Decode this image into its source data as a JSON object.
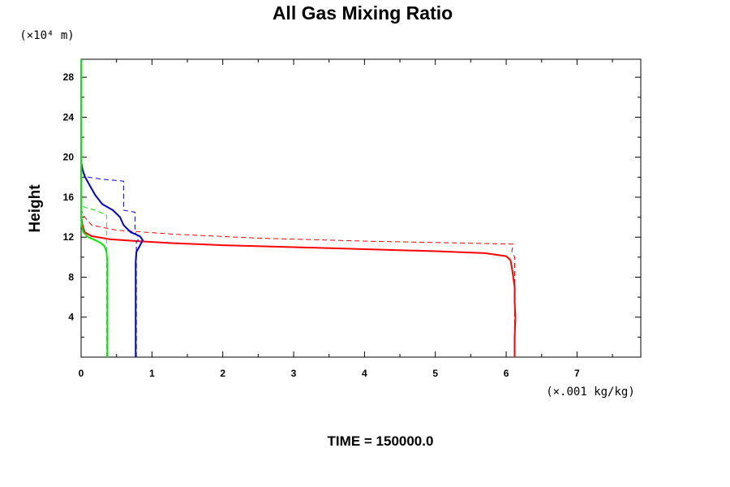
{
  "chart_data": {
    "type": "line",
    "title": "All Gas Mixing Ratio",
    "ylabel": "Height",
    "y_unit_label": "(×10⁴ m)",
    "x_unit_label": "(×.001 kg/kg)",
    "footer": "TIME = 150000.0",
    "xlim": [
      0,
      7.9
    ],
    "ylim": [
      0,
      29.8
    ],
    "x_ticks": [
      "0",
      "1",
      "2",
      "3",
      "4",
      "5",
      "6",
      "7"
    ],
    "y_ticks": [
      "4",
      "8",
      "12",
      "16",
      "20",
      "24",
      "28"
    ],
    "series": [
      {
        "color": "#ff0000",
        "style": "solid",
        "width": 2,
        "points": [
          [
            6.12,
            0
          ],
          [
            6.12,
            2
          ],
          [
            6.13,
            4
          ],
          [
            6.12,
            5.5
          ],
          [
            6.12,
            7
          ],
          [
            6.1,
            8
          ],
          [
            6.08,
            9
          ],
          [
            6.06,
            9.7
          ],
          [
            6.0,
            10.1
          ],
          [
            5.7,
            10.4
          ],
          [
            5.0,
            10.6
          ],
          [
            4.0,
            10.8
          ],
          [
            3.0,
            11.0
          ],
          [
            2.0,
            11.2
          ],
          [
            1.3,
            11.4
          ],
          [
            0.8,
            11.6
          ],
          [
            0.4,
            11.8
          ],
          [
            0.15,
            12.1
          ],
          [
            0.05,
            12.5
          ],
          [
            0.02,
            13.2
          ],
          [
            0,
            14
          ]
        ]
      },
      {
        "color": "#ff0000",
        "style": "dashed",
        "width": 1,
        "points": [
          [
            6.12,
            0
          ],
          [
            6.12,
            10
          ],
          [
            6.08,
            10.6
          ],
          [
            6.1,
            11.3
          ],
          [
            5.5,
            11.4
          ],
          [
            4.0,
            11.6
          ],
          [
            2.5,
            11.9
          ],
          [
            1.3,
            12.3
          ],
          [
            0.5,
            12.7
          ],
          [
            0.15,
            13.2
          ],
          [
            0.05,
            14
          ],
          [
            0,
            14.7
          ]
        ]
      },
      {
        "color": "#0000cc",
        "style": "solid",
        "width": 2,
        "points": [
          [
            0.77,
            0
          ],
          [
            0.77,
            5
          ],
          [
            0.77,
            9.5
          ],
          [
            0.78,
            10.5
          ],
          [
            0.84,
            11.3
          ],
          [
            0.87,
            11.7
          ],
          [
            0.83,
            12.1
          ],
          [
            0.7,
            12.5
          ],
          [
            0.6,
            13.2
          ],
          [
            0.55,
            14.0
          ],
          [
            0.45,
            14.7
          ],
          [
            0.3,
            15.3
          ],
          [
            0.2,
            16.2
          ],
          [
            0.12,
            17.2
          ],
          [
            0.05,
            18.1
          ],
          [
            0.02,
            18.8
          ],
          [
            0,
            19.5
          ]
        ]
      },
      {
        "color": "#0000cc",
        "style": "dashed",
        "width": 1,
        "points": [
          [
            0.78,
            0
          ],
          [
            0.78,
            11.5
          ],
          [
            0.82,
            11.9
          ],
          [
            0.76,
            12.5
          ],
          [
            0.76,
            14.5
          ],
          [
            0.6,
            14.7
          ],
          [
            0.6,
            17.6
          ],
          [
            0.3,
            17.8
          ],
          [
            0.1,
            18.0
          ],
          [
            0.03,
            18.4
          ],
          [
            0,
            19
          ]
        ]
      },
      {
        "color": "#00ee00",
        "style": "solid",
        "width": 2,
        "points": [
          [
            0.37,
            0
          ],
          [
            0.37,
            5
          ],
          [
            0.37,
            9.5
          ],
          [
            0.36,
            10.5
          ],
          [
            0.33,
            11.1
          ],
          [
            0.28,
            11.4
          ],
          [
            0.2,
            11.7
          ],
          [
            0.1,
            12.0
          ],
          [
            0.03,
            12.5
          ],
          [
            0.01,
            13.1
          ],
          [
            0,
            13.8
          ],
          [
            0,
            29.8
          ]
        ]
      },
      {
        "color": "#00ee00",
        "style": "dashed",
        "width": 1,
        "points": [
          [
            0.36,
            0
          ],
          [
            0.36,
            14.2
          ],
          [
            0.2,
            14.7
          ],
          [
            0.05,
            15
          ],
          [
            0,
            15.2
          ]
        ]
      }
    ]
  }
}
